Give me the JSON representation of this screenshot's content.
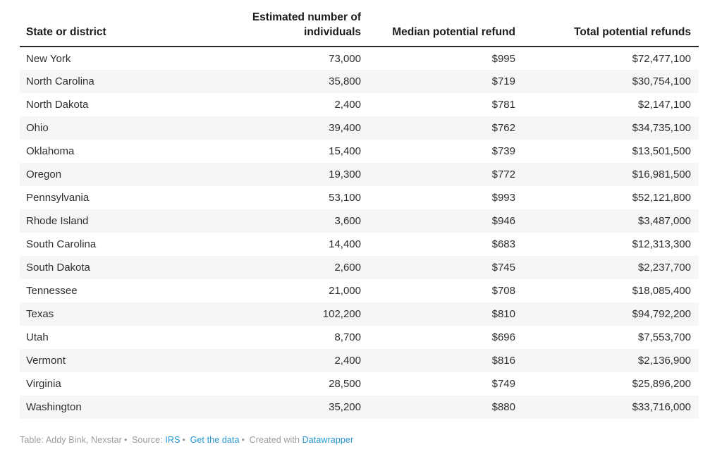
{
  "chart_data": {
    "type": "table",
    "columns": [
      "State or district",
      "Estimated number of individuals",
      "Median potential refund",
      "Total potential refunds"
    ],
    "rows": [
      [
        "New York",
        "73,000",
        "$995",
        "$72,477,100"
      ],
      [
        "North Carolina",
        "35,800",
        "$719",
        "$30,754,100"
      ],
      [
        "North Dakota",
        "2,400",
        "$781",
        "$2,147,100"
      ],
      [
        "Ohio",
        "39,400",
        "$762",
        "$34,735,100"
      ],
      [
        "Oklahoma",
        "15,400",
        "$739",
        "$13,501,500"
      ],
      [
        "Oregon",
        "19,300",
        "$772",
        "$16,981,500"
      ],
      [
        "Pennsylvania",
        "53,100",
        "$993",
        "$52,121,800"
      ],
      [
        "Rhode Island",
        "3,600",
        "$946",
        "$3,487,000"
      ],
      [
        "South Carolina",
        "14,400",
        "$683",
        "$12,313,300"
      ],
      [
        "South Dakota",
        "2,600",
        "$745",
        "$2,237,700"
      ],
      [
        "Tennessee",
        "21,000",
        "$708",
        "$18,085,400"
      ],
      [
        "Texas",
        "102,200",
        "$810",
        "$94,792,200"
      ],
      [
        "Utah",
        "8,700",
        "$696",
        "$7,553,700"
      ],
      [
        "Vermont",
        "2,400",
        "$816",
        "$2,136,900"
      ],
      [
        "Virginia",
        "28,500",
        "$749",
        "$25,896,200"
      ],
      [
        "Washington",
        "35,200",
        "$880",
        "$33,716,000"
      ]
    ],
    "layout_hints": {
      "striped_rows": true,
      "numeric_columns_right_aligned": true,
      "header_rule": true
    }
  },
  "footer": {
    "credit": "Table: Addy Bink, Nexstar",
    "separator": "•",
    "source_label": "Source:",
    "source_link_label": "IRS",
    "get_data_link_label": "Get the data",
    "created_with_label": "Created with",
    "tool_link_label": "Datawrapper"
  },
  "colors": {
    "link_blue": "#2596d2",
    "row_stripe": "#f6f6f6",
    "header_rule": "#2b2b2b",
    "body_text": "#2e2e2e",
    "header_text": "#1a1a1a",
    "footer_text": "#9b9b9b"
  }
}
